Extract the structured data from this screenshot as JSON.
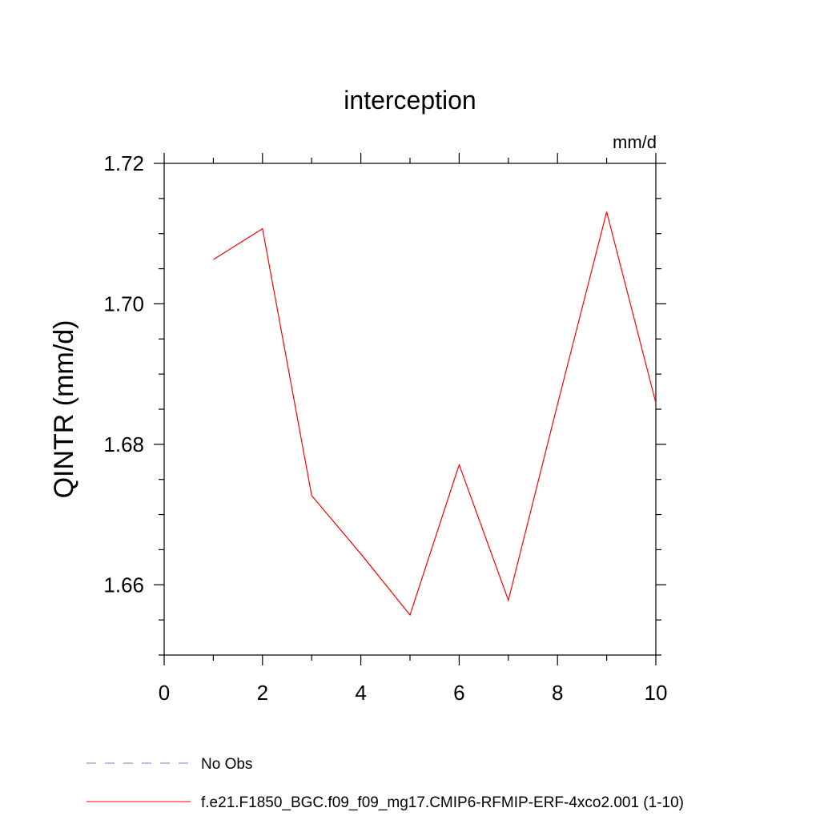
{
  "chart_data": {
    "type": "line",
    "title": "interception",
    "units": "mm/d",
    "ylabel": "QINTR  (mm/d)",
    "xlabel": "",
    "xlim": [
      0,
      10
    ],
    "ylim": [
      1.65,
      1.72
    ],
    "x_ticks": [
      0,
      2,
      4,
      6,
      8,
      10
    ],
    "x_tick_labels": [
      "0",
      "2",
      "4",
      "6",
      "8",
      "10"
    ],
    "y_ticks": [
      1.66,
      1.68,
      1.7,
      1.72
    ],
    "y_tick_labels": [
      "1.66",
      "1.68",
      "1.70",
      "1.72"
    ],
    "x_minor_step": 1,
    "y_minor_step": 0.005,
    "grid": false,
    "legend_placement": "bottom-left",
    "series": [
      {
        "name": "f.e21.F1850_BGC.f09_f09_mg17.CMIP6-RFMIP-ERF-4xco2.001 (1-10)",
        "color": "#ff0000",
        "dash": "solid",
        "x": [
          1,
          2,
          3,
          4,
          5,
          6,
          7,
          8,
          9,
          10
        ],
        "y": [
          1.7063,
          1.7107,
          1.6727,
          1.6644,
          1.6557,
          1.6771,
          1.6578,
          1.6857,
          1.7131,
          1.6859
        ]
      }
    ],
    "legend": [
      {
        "label": "No Obs",
        "color": "#7777cc",
        "dash": "dashed"
      },
      {
        "label": "f.e21.F1850_BGC.f09_f09_mg17.CMIP6-RFMIP-ERF-4xco2.001 (1-10)",
        "color": "#ff0000",
        "dash": "solid"
      }
    ]
  }
}
